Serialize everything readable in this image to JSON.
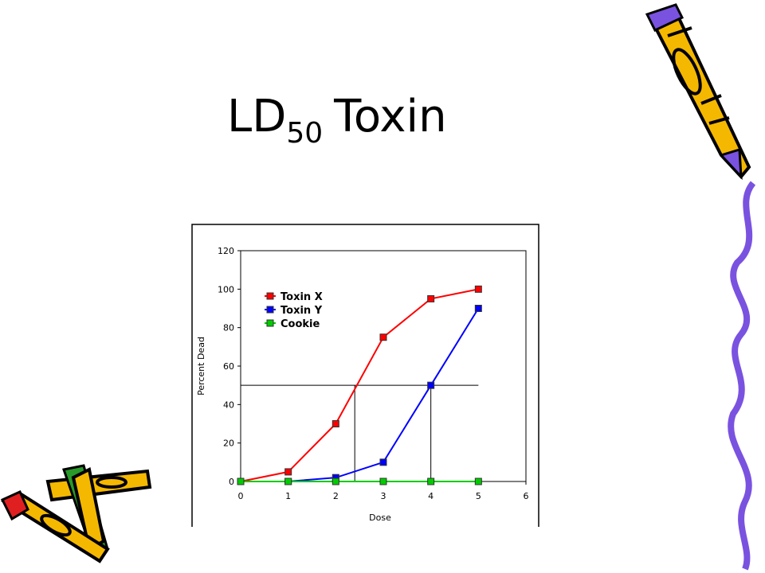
{
  "slide": {
    "title": {
      "main": "LD",
      "subscript": "50",
      "rest": "Toxin"
    }
  },
  "chart_data": {
    "type": "line",
    "x_label": "Dose",
    "y_label": "Percent Dead",
    "x": [
      0,
      1,
      2,
      3,
      4,
      5
    ],
    "series": [
      {
        "name": "Toxin X",
        "color": "#ff0000",
        "values": [
          0,
          5,
          30,
          75,
          95,
          100
        ]
      },
      {
        "name": "Toxin Y",
        "color": "#0000ff",
        "values": [
          0,
          0,
          2,
          10,
          50,
          90
        ]
      },
      {
        "name": "Cookie",
        "color": "#00cc00",
        "values": [
          0,
          0,
          0,
          0,
          0,
          0
        ]
      }
    ],
    "xlim": [
      0,
      6
    ],
    "xticks": [
      0,
      1,
      2,
      3,
      4,
      5,
      6
    ],
    "ylim": [
      0,
      120
    ],
    "yticks": [
      0,
      20,
      40,
      60,
      80,
      100,
      120
    ],
    "guides": {
      "y": 50,
      "x": [
        2.4,
        4
      ]
    },
    "legend": "upper-left",
    "grid": false
  }
}
